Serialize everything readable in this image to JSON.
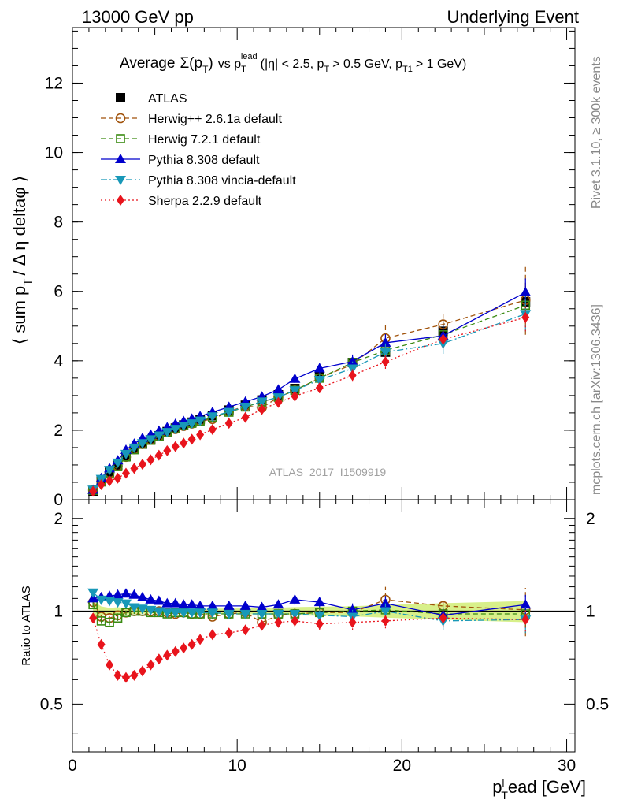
{
  "header": {
    "left": "13000 GeV pp",
    "right": "Underlying Event",
    "analysis_id": "ATLAS_2017_I1509919",
    "side_rivet": "Rivet 3.1.10, ≥ 300k events",
    "side_site": "mcplots.cern.ch [arXiv:1306.3436]"
  },
  "colors": {
    "atlas": "#000000",
    "herwigpp": "#a0520a",
    "herwig7": "#3a8a12",
    "pythia": "#0000cc",
    "vincia": "#1898b8",
    "sherpa": "#e8141c",
    "band": "#d8f08a"
  },
  "chart_data": [
    {
      "type": "scatter",
      "title": "Average Σ(p_T) vs p_T^lead (|η| < 2.5, p_T > 0.5 GeV, p_T1 > 1 GeV)",
      "title_parts": {
        "average": "Average",
        "sigma": "Σ(p",
        "sub_T": "T",
        "close": ")",
        "vs": "vs p",
        "lead": "lead",
        "rest": "(|η| < 2.5, p",
        "pt_cut": "> 0.5 GeV, p",
        "t1": "T1",
        "lead_cut": "> 1 GeV)"
      },
      "ylabel": "⟨ sum p_T / Δη deltaφ ⟩",
      "ylabel_parts": {
        "a": "⟨ sum p",
        "b": "T",
        "c": "/ Δ η deltaφ ⟩"
      },
      "xlim": [
        0,
        30.5
      ],
      "ylim": [
        0,
        13.6
      ],
      "y_ticks": [
        0,
        2,
        4,
        6,
        8,
        10,
        12
      ],
      "legend_position": "top-left",
      "series": [
        {
          "key": "atlas",
          "name": "ATLAS",
          "marker": "square-filled",
          "x": [
            1.25,
            1.75,
            2.25,
            2.75,
            3.25,
            3.75,
            4.25,
            4.75,
            5.25,
            5.75,
            6.25,
            6.75,
            7.25,
            7.75,
            8.5,
            9.5,
            10.5,
            11.5,
            12.5,
            13.5,
            15,
            17,
            19,
            22.5,
            27.5
          ],
          "y": [
            0.25,
            0.55,
            0.8,
            1.0,
            1.25,
            1.45,
            1.6,
            1.72,
            1.84,
            1.96,
            2.06,
            2.15,
            2.23,
            2.31,
            2.42,
            2.58,
            2.72,
            2.87,
            3.02,
            3.2,
            3.55,
            3.95,
            4.25,
            4.85,
            5.7
          ],
          "err": [
            0.02,
            0.02,
            0.02,
            0.03,
            0.03,
            0.03,
            0.03,
            0.03,
            0.03,
            0.04,
            0.04,
            0.04,
            0.04,
            0.04,
            0.05,
            0.05,
            0.06,
            0.07,
            0.08,
            0.1,
            0.12,
            0.15,
            0.2,
            0.3,
            0.45
          ]
        },
        {
          "key": "herwigpp",
          "name": "Herwig++ 2.6.1a default",
          "marker": "circle-open",
          "line": "dashed",
          "x": [
            1.25,
            1.75,
            2.25,
            2.75,
            3.25,
            3.75,
            4.25,
            4.75,
            5.25,
            5.75,
            6.25,
            6.75,
            7.25,
            7.75,
            8.5,
            9.5,
            10.5,
            11.5,
            12.5,
            13.5,
            15,
            17,
            19,
            22.5,
            27.5
          ],
          "y": [
            0.27,
            0.53,
            0.76,
            0.97,
            1.23,
            1.45,
            1.6,
            1.72,
            1.83,
            1.94,
            2.03,
            2.12,
            2.19,
            2.26,
            2.32,
            2.54,
            2.7,
            2.65,
            2.95,
            3.15,
            3.5,
            3.9,
            4.65,
            5.05,
            5.75
          ],
          "err": [
            0.02,
            0.02,
            0.02,
            0.03,
            0.03,
            0.03,
            0.03,
            0.03,
            0.04,
            0.04,
            0.04,
            0.04,
            0.05,
            0.05,
            0.05,
            0.06,
            0.07,
            0.08,
            0.1,
            0.12,
            0.15,
            0.2,
            0.45,
            0.3,
            1.0
          ]
        },
        {
          "key": "herwig7",
          "name": "Herwig 7.2.1 default",
          "marker": "square-open",
          "line": "dashed",
          "x": [
            1.25,
            1.75,
            2.25,
            2.75,
            3.25,
            3.75,
            4.25,
            4.75,
            5.25,
            5.75,
            6.25,
            6.75,
            7.25,
            7.75,
            8.5,
            9.5,
            10.5,
            11.5,
            12.5,
            13.5,
            15,
            17,
            19,
            22.5,
            27.5
          ],
          "y": [
            0.27,
            0.51,
            0.74,
            0.95,
            1.23,
            1.44,
            1.6,
            1.71,
            1.82,
            1.93,
            2.04,
            2.13,
            2.2,
            2.26,
            2.37,
            2.52,
            2.67,
            2.82,
            2.95,
            3.15,
            3.5,
            3.95,
            4.3,
            4.75,
            5.6
          ],
          "err": [
            0.02,
            0.02,
            0.02,
            0.03,
            0.03,
            0.03,
            0.03,
            0.03,
            0.04,
            0.04,
            0.04,
            0.04,
            0.05,
            0.05,
            0.05,
            0.06,
            0.07,
            0.08,
            0.1,
            0.12,
            0.15,
            0.2,
            0.25,
            0.3,
            0.5
          ]
        },
        {
          "key": "pythia",
          "name": "Pythia 8.308 default",
          "marker": "triangle-up",
          "line": "solid",
          "x": [
            1.25,
            1.75,
            2.25,
            2.75,
            3.25,
            3.75,
            4.25,
            4.75,
            5.25,
            5.75,
            6.25,
            6.75,
            7.25,
            7.75,
            8.5,
            9.5,
            10.5,
            11.5,
            12.5,
            13.5,
            15,
            17,
            19,
            22.5,
            27.5
          ],
          "y": [
            0.28,
            0.62,
            0.9,
            1.13,
            1.43,
            1.61,
            1.77,
            1.87,
            1.98,
            2.08,
            2.18,
            2.26,
            2.33,
            2.4,
            2.52,
            2.67,
            2.82,
            2.97,
            3.17,
            3.48,
            3.78,
            3.98,
            4.52,
            4.72,
            5.97
          ],
          "err": [
            0.02,
            0.02,
            0.02,
            0.03,
            0.03,
            0.03,
            0.03,
            0.03,
            0.04,
            0.04,
            0.04,
            0.04,
            0.05,
            0.05,
            0.05,
            0.06,
            0.07,
            0.08,
            0.1,
            0.12,
            0.15,
            0.2,
            0.25,
            0.3,
            0.4
          ]
        },
        {
          "key": "vincia",
          "name": "Pythia 8.308 vincia-default",
          "marker": "triangle-down",
          "line": "dashdot",
          "x": [
            1.25,
            1.75,
            2.25,
            2.75,
            3.25,
            3.75,
            4.25,
            4.75,
            5.25,
            5.75,
            6.25,
            6.75,
            7.25,
            7.75,
            8.5,
            9.5,
            10.5,
            11.5,
            12.5,
            13.5,
            15,
            17,
            19,
            22.5,
            27.5
          ],
          "y": [
            0.29,
            0.6,
            0.86,
            1.07,
            1.32,
            1.5,
            1.63,
            1.74,
            1.85,
            1.95,
            2.04,
            2.13,
            2.2,
            2.28,
            2.4,
            2.53,
            2.68,
            2.83,
            2.95,
            3.15,
            3.45,
            3.78,
            4.25,
            4.5,
            5.35
          ],
          "err": [
            0.02,
            0.02,
            0.02,
            0.03,
            0.03,
            0.03,
            0.03,
            0.03,
            0.04,
            0.04,
            0.04,
            0.04,
            0.05,
            0.05,
            0.05,
            0.06,
            0.07,
            0.08,
            0.1,
            0.12,
            0.15,
            0.2,
            0.25,
            0.3,
            0.5
          ]
        },
        {
          "key": "sherpa",
          "name": "Sherpa 2.2.9 default",
          "marker": "diamond",
          "line": "dotted",
          "x": [
            1.25,
            1.75,
            2.25,
            2.75,
            3.25,
            3.75,
            4.25,
            4.75,
            5.25,
            5.75,
            6.25,
            6.75,
            7.25,
            7.75,
            8.5,
            9.5,
            10.5,
            11.5,
            12.5,
            13.5,
            15,
            17,
            19,
            22.5,
            27.5
          ],
          "y": [
            0.24,
            0.43,
            0.54,
            0.62,
            0.76,
            0.9,
            1.02,
            1.15,
            1.28,
            1.41,
            1.53,
            1.63,
            1.74,
            1.87,
            2.02,
            2.2,
            2.37,
            2.6,
            2.8,
            2.98,
            3.22,
            3.58,
            3.97,
            4.62,
            5.25
          ],
          "err": [
            0.02,
            0.02,
            0.02,
            0.03,
            0.03,
            0.03,
            0.03,
            0.03,
            0.03,
            0.04,
            0.04,
            0.04,
            0.04,
            0.05,
            0.05,
            0.06,
            0.07,
            0.08,
            0.1,
            0.12,
            0.15,
            0.18,
            0.2,
            0.25,
            0.4
          ]
        }
      ]
    },
    {
      "type": "line",
      "ylabel": "Ratio to ATLAS",
      "xlabel": "p_T^lead [GeV]",
      "xlabel_parts": {
        "p": "p",
        "l": "l",
        "T": "T",
        "rest": "ead [GeV]"
      },
      "xlim": [
        0,
        30.5
      ],
      "ylim": [
        0.35,
        2.3
      ],
      "y_ticks": [
        0.5,
        1,
        2
      ],
      "y_tick_labels": [
        "0.5",
        "1",
        "2"
      ],
      "x_ticks": [
        0,
        10,
        20,
        30
      ],
      "x_tick_labels": [
        "0",
        "10",
        "20",
        "30"
      ],
      "series": [
        {
          "key": "herwigpp",
          "y": [
            1.07,
            0.96,
            0.95,
            0.97,
            0.99,
            1.0,
            1.0,
            1.0,
            1.0,
            0.99,
            0.98,
            0.99,
            0.98,
            0.98,
            0.96,
            0.98,
            0.99,
            0.92,
            0.97,
            0.98,
            0.99,
            0.99,
            1.09,
            1.04,
            1.01
          ],
          "err": [
            0.02,
            0.02,
            0.02,
            0.02,
            0.02,
            0.02,
            0.02,
            0.02,
            0.02,
            0.02,
            0.02,
            0.02,
            0.02,
            0.02,
            0.02,
            0.02,
            0.03,
            0.03,
            0.03,
            0.04,
            0.04,
            0.05,
            0.11,
            0.06,
            0.18
          ]
        },
        {
          "key": "herwig7",
          "y": [
            1.05,
            0.93,
            0.92,
            0.95,
            0.99,
            1.0,
            1.0,
            0.99,
            0.99,
            0.98,
            0.99,
            0.99,
            0.98,
            0.98,
            0.98,
            0.98,
            0.98,
            0.98,
            0.98,
            0.98,
            0.99,
            1.0,
            1.01,
            0.98,
            0.98
          ],
          "err": [
            0.02,
            0.02,
            0.02,
            0.02,
            0.02,
            0.02,
            0.02,
            0.02,
            0.02,
            0.02,
            0.02,
            0.02,
            0.02,
            0.02,
            0.02,
            0.02,
            0.03,
            0.03,
            0.03,
            0.04,
            0.04,
            0.05,
            0.06,
            0.06,
            0.09
          ]
        },
        {
          "key": "pythia",
          "y": [
            1.1,
            1.11,
            1.12,
            1.13,
            1.14,
            1.13,
            1.11,
            1.09,
            1.08,
            1.06,
            1.06,
            1.05,
            1.05,
            1.04,
            1.04,
            1.04,
            1.04,
            1.03,
            1.05,
            1.09,
            1.07,
            1.01,
            1.06,
            0.97,
            1.05
          ],
          "err": [
            0.02,
            0.02,
            0.02,
            0.02,
            0.02,
            0.02,
            0.02,
            0.02,
            0.02,
            0.02,
            0.02,
            0.02,
            0.02,
            0.02,
            0.02,
            0.02,
            0.03,
            0.03,
            0.03,
            0.04,
            0.04,
            0.05,
            0.06,
            0.06,
            0.08
          ]
        },
        {
          "key": "vincia",
          "y": [
            1.15,
            1.09,
            1.08,
            1.07,
            1.06,
            1.03,
            1.02,
            1.01,
            1.0,
            0.99,
            0.99,
            0.99,
            0.99,
            0.99,
            0.99,
            0.98,
            0.98,
            0.98,
            0.98,
            0.98,
            0.97,
            0.96,
            1.0,
            0.93,
            0.94
          ],
          "err": [
            0.02,
            0.02,
            0.02,
            0.02,
            0.02,
            0.02,
            0.02,
            0.02,
            0.02,
            0.02,
            0.02,
            0.02,
            0.02,
            0.02,
            0.02,
            0.02,
            0.03,
            0.03,
            0.03,
            0.04,
            0.04,
            0.05,
            0.06,
            0.06,
            0.09
          ]
        },
        {
          "key": "sherpa",
          "y": [
            0.95,
            0.78,
            0.67,
            0.62,
            0.61,
            0.62,
            0.64,
            0.67,
            0.7,
            0.72,
            0.74,
            0.76,
            0.78,
            0.81,
            0.84,
            0.85,
            0.87,
            0.9,
            0.92,
            0.93,
            0.91,
            0.92,
            0.93,
            0.95,
            0.94
          ],
          "err": [
            0.02,
            0.02,
            0.02,
            0.02,
            0.02,
            0.02,
            0.02,
            0.02,
            0.02,
            0.02,
            0.02,
            0.02,
            0.02,
            0.02,
            0.02,
            0.02,
            0.03,
            0.03,
            0.03,
            0.04,
            0.04,
            0.05,
            0.05,
            0.06,
            0.08
          ]
        }
      ]
    }
  ]
}
